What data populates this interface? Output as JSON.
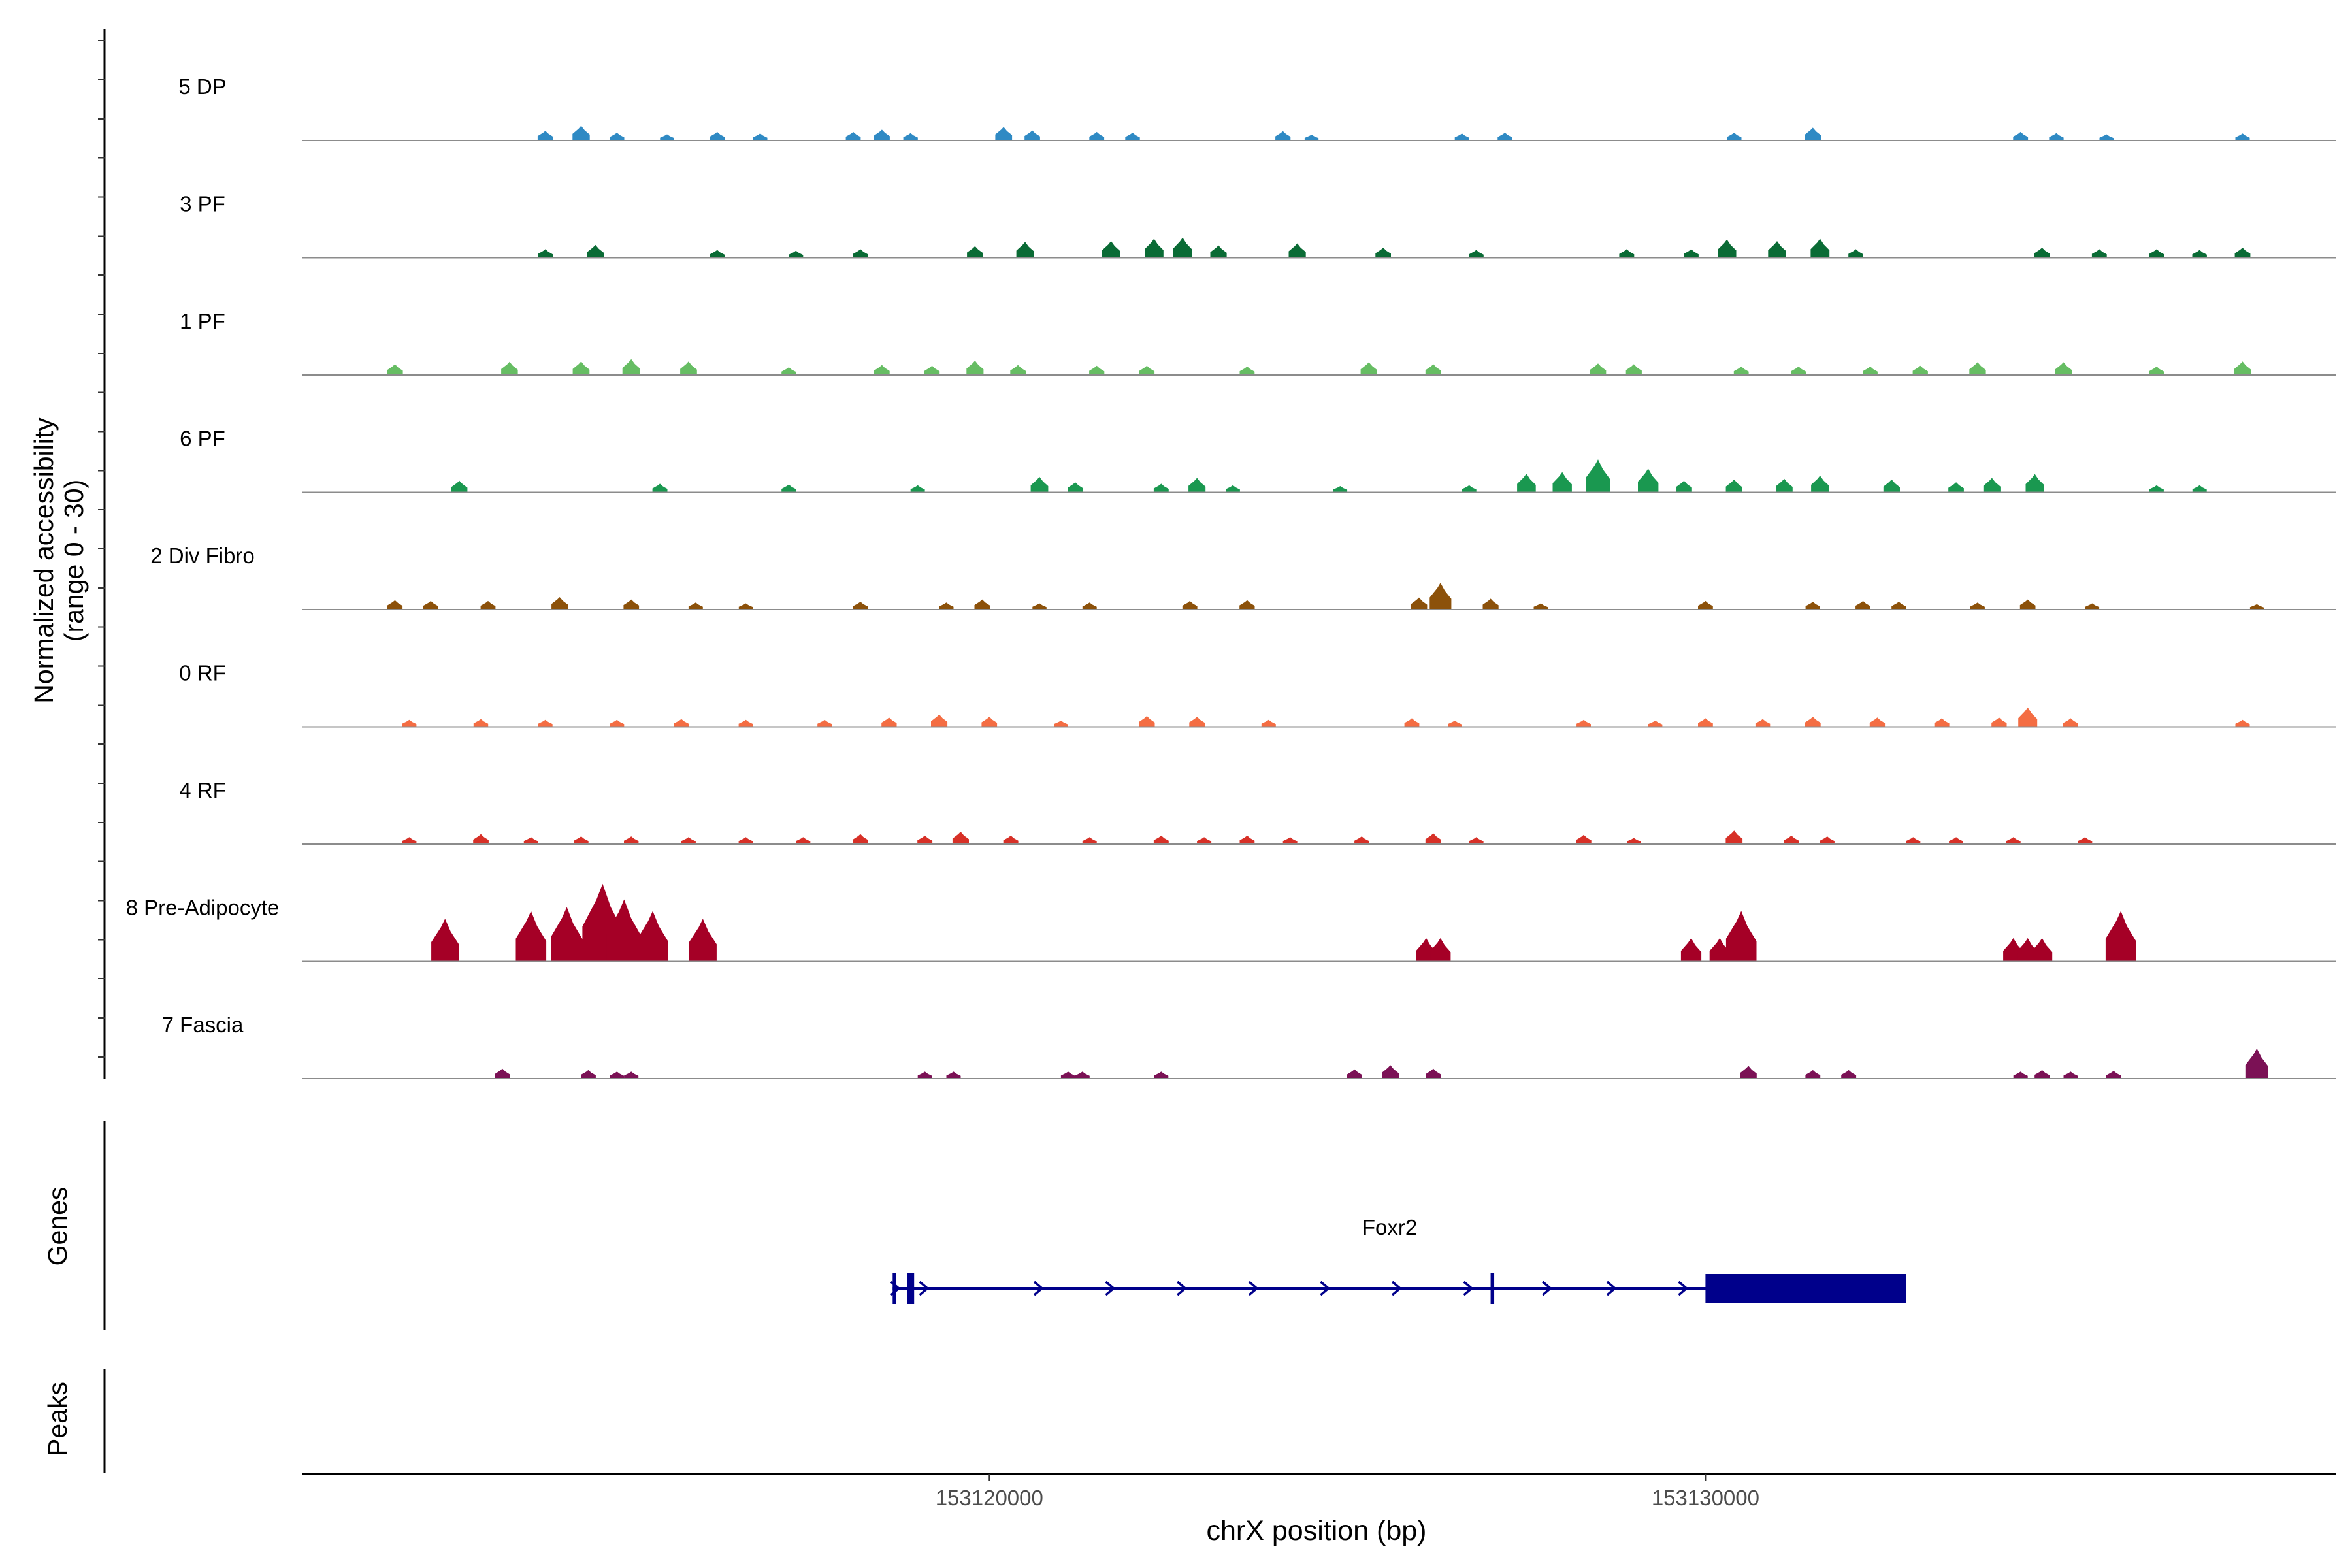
{
  "chart_data": {
    "type": "coverage-track",
    "title": "",
    "region": {
      "chrom": "chrX",
      "start": 153110400,
      "end": 153138800
    },
    "xlabel": "chrX position (bp)",
    "x_ticks": [
      153120000,
      153130000
    ],
    "x_tick_labels": [
      "153120000",
      "153130000"
    ],
    "coverage_ylabel_line1": "Normalized accessibility",
    "coverage_ylabel_line2": "(range 0 - 30)",
    "ylim": [
      0,
      30
    ],
    "genes_label": "Genes",
    "peaks_label": "Peaks",
    "tracks": [
      {
        "name": "5 DP",
        "color": "#2f8ac4",
        "peaks": [
          [
            153113800,
            2.5
          ],
          [
            153114300,
            3.8
          ],
          [
            153114800,
            2.0
          ],
          [
            153115500,
            1.6
          ],
          [
            153116200,
            2.2
          ],
          [
            153116800,
            1.8
          ],
          [
            153118100,
            2.2
          ],
          [
            153118500,
            2.8
          ],
          [
            153118900,
            1.9
          ],
          [
            153120200,
            3.5
          ],
          [
            153120600,
            2.6
          ],
          [
            153121500,
            2.2
          ],
          [
            153122000,
            2.0
          ],
          [
            153124100,
            2.4
          ],
          [
            153124500,
            1.5
          ],
          [
            153126600,
            1.8
          ],
          [
            153127200,
            2.0
          ],
          [
            153130400,
            2.0
          ],
          [
            153131500,
            3.3
          ],
          [
            153134400,
            2.2
          ],
          [
            153134900,
            1.9
          ],
          [
            153135600,
            1.6
          ],
          [
            153137500,
            1.8
          ]
        ]
      },
      {
        "name": "3 PF",
        "color": "#0a6b35",
        "peaks": [
          [
            153113800,
            2.2
          ],
          [
            153114500,
            3.3
          ],
          [
            153116200,
            2.0
          ],
          [
            153117300,
            1.8
          ],
          [
            153118200,
            2.2
          ],
          [
            153119800,
            3.0
          ],
          [
            153120500,
            4.1
          ],
          [
            153121700,
            4.3
          ],
          [
            153122300,
            4.9
          ],
          [
            153122700,
            5.2
          ],
          [
            153123200,
            3.2
          ],
          [
            153124300,
            3.7
          ],
          [
            153125500,
            2.6
          ],
          [
            153126800,
            2.0
          ],
          [
            153128900,
            2.2
          ],
          [
            153129800,
            2.2
          ],
          [
            153130300,
            4.7
          ],
          [
            153131000,
            4.3
          ],
          [
            153131600,
            4.9
          ],
          [
            153132100,
            2.2
          ],
          [
            153134700,
            2.6
          ],
          [
            153135500,
            2.2
          ],
          [
            153136300,
            2.2
          ],
          [
            153136900,
            2.0
          ],
          [
            153137500,
            2.6
          ]
        ]
      },
      {
        "name": "1 PF",
        "color": "#66bd63",
        "peaks": [
          [
            153111700,
            2.8
          ],
          [
            153113300,
            3.4
          ],
          [
            153114300,
            3.5
          ],
          [
            153115000,
            4.1
          ],
          [
            153115800,
            3.5
          ],
          [
            153117200,
            2.0
          ],
          [
            153118500,
            2.6
          ],
          [
            153119200,
            2.4
          ],
          [
            153119800,
            3.7
          ],
          [
            153120400,
            2.6
          ],
          [
            153121500,
            2.4
          ],
          [
            153122200,
            2.4
          ],
          [
            153123600,
            2.2
          ],
          [
            153125300,
            3.3
          ],
          [
            153126200,
            2.8
          ],
          [
            153128500,
            3.0
          ],
          [
            153129000,
            2.8
          ],
          [
            153130500,
            2.2
          ],
          [
            153131300,
            2.2
          ],
          [
            153132300,
            2.2
          ],
          [
            153133000,
            2.4
          ],
          [
            153133800,
            3.3
          ],
          [
            153135000,
            3.3
          ],
          [
            153136300,
            2.2
          ],
          [
            153137500,
            3.5
          ]
        ]
      },
      {
        "name": "6 PF",
        "color": "#1a9850",
        "peaks": [
          [
            153112600,
            3.0
          ],
          [
            153115400,
            2.2
          ],
          [
            153117200,
            2.0
          ],
          [
            153119000,
            1.8
          ],
          [
            153120700,
            4.0
          ],
          [
            153121200,
            2.6
          ],
          [
            153122400,
            2.2
          ],
          [
            153122900,
            3.7
          ],
          [
            153123400,
            1.8
          ],
          [
            153124900,
            1.6
          ],
          [
            153126700,
            1.8
          ],
          [
            153127500,
            4.8
          ],
          [
            153128000,
            5.2
          ],
          [
            153128500,
            8.5
          ],
          [
            153129200,
            6.1
          ],
          [
            153129700,
            3.0
          ],
          [
            153130400,
            3.3
          ],
          [
            153131100,
            3.5
          ],
          [
            153131600,
            4.3
          ],
          [
            153132600,
            3.3
          ],
          [
            153133500,
            2.6
          ],
          [
            153134000,
            3.7
          ],
          [
            153134600,
            4.7
          ],
          [
            153136300,
            1.8
          ],
          [
            153136900,
            1.8
          ]
        ]
      },
      {
        "name": "2 Div Fibro",
        "color": "#8c510a",
        "peaks": [
          [
            153111700,
            2.4
          ],
          [
            153112200,
            2.2
          ],
          [
            153113000,
            2.2
          ],
          [
            153114000,
            3.2
          ],
          [
            153115000,
            2.6
          ],
          [
            153115900,
            1.8
          ],
          [
            153116600,
            1.6
          ],
          [
            153118200,
            2.0
          ],
          [
            153119400,
            1.8
          ],
          [
            153119900,
            2.6
          ],
          [
            153120700,
            1.6
          ],
          [
            153121400,
            1.8
          ],
          [
            153122800,
            2.2
          ],
          [
            153123600,
            2.4
          ],
          [
            153126000,
            3.1
          ],
          [
            153126300,
            6.9
          ],
          [
            153127000,
            2.8
          ],
          [
            153127700,
            1.6
          ],
          [
            153130000,
            2.2
          ],
          [
            153131500,
            2.0
          ],
          [
            153132200,
            2.2
          ],
          [
            153132700,
            2.0
          ],
          [
            153133800,
            1.8
          ],
          [
            153134500,
            2.6
          ],
          [
            153135400,
            1.6
          ],
          [
            153137700,
            1.4
          ]
        ]
      },
      {
        "name": "0 RF",
        "color": "#f46d43",
        "peaks": [
          [
            153111900,
            1.8
          ],
          [
            153112900,
            2.0
          ],
          [
            153113800,
            1.8
          ],
          [
            153114800,
            1.8
          ],
          [
            153115700,
            2.0
          ],
          [
            153116600,
            1.8
          ],
          [
            153117700,
            1.8
          ],
          [
            153118600,
            2.4
          ],
          [
            153119300,
            3.2
          ],
          [
            153120000,
            2.6
          ],
          [
            153121000,
            1.6
          ],
          [
            153122200,
            2.8
          ],
          [
            153122900,
            2.6
          ],
          [
            153123900,
            1.8
          ],
          [
            153125900,
            2.2
          ],
          [
            153126500,
            1.6
          ],
          [
            153128300,
            1.8
          ],
          [
            153129300,
            1.6
          ],
          [
            153130000,
            2.2
          ],
          [
            153130800,
            2.0
          ],
          [
            153131500,
            2.6
          ],
          [
            153132400,
            2.4
          ],
          [
            153133300,
            2.2
          ],
          [
            153134100,
            2.4
          ],
          [
            153134500,
            5.0
          ],
          [
            153135100,
            2.2
          ],
          [
            153137500,
            1.8
          ]
        ]
      },
      {
        "name": "4 RF",
        "color": "#d73027",
        "peaks": [
          [
            153111900,
            1.8
          ],
          [
            153112900,
            2.6
          ],
          [
            153113600,
            1.8
          ],
          [
            153114300,
            2.0
          ],
          [
            153115000,
            2.0
          ],
          [
            153115800,
            1.8
          ],
          [
            153116600,
            1.8
          ],
          [
            153117400,
            1.8
          ],
          [
            153118200,
            2.6
          ],
          [
            153119100,
            2.2
          ],
          [
            153119600,
            3.2
          ],
          [
            153120300,
            2.2
          ],
          [
            153121400,
            1.8
          ],
          [
            153122400,
            2.2
          ],
          [
            153123000,
            1.8
          ],
          [
            153123600,
            2.2
          ],
          [
            153124200,
            1.8
          ],
          [
            153125200,
            2.0
          ],
          [
            153126200,
            2.8
          ],
          [
            153126800,
            1.8
          ],
          [
            153128300,
            2.4
          ],
          [
            153129000,
            1.6
          ],
          [
            153130400,
            3.5
          ],
          [
            153131200,
            2.2
          ],
          [
            153131700,
            2.0
          ],
          [
            153132900,
            1.8
          ],
          [
            153133500,
            1.8
          ],
          [
            153134300,
            1.8
          ],
          [
            153135300,
            1.8
          ]
        ]
      },
      {
        "name": "8 Pre-Adipocyte",
        "color": "#a50026",
        "peaks": [
          [
            153112400,
            11.0
          ],
          [
            153113600,
            13.0
          ],
          [
            153114100,
            14.0
          ],
          [
            153114600,
            20.0
          ],
          [
            153114900,
            16.0
          ],
          [
            153115300,
            13.0
          ],
          [
            153116000,
            11.0
          ],
          [
            153126100,
            6.0
          ],
          [
            153126300,
            6.0
          ],
          [
            153129800,
            6.0
          ],
          [
            153130200,
            6.0
          ],
          [
            153130500,
            13.0
          ],
          [
            153134300,
            6.0
          ],
          [
            153134500,
            6.0
          ],
          [
            153134700,
            6.0
          ],
          [
            153135800,
            13.0
          ]
        ]
      },
      {
        "name": "7 Fascia",
        "color": "#7b1155",
        "peaks": [
          [
            153113200,
            2.6
          ],
          [
            153114400,
            2.2
          ],
          [
            153114800,
            1.8
          ],
          [
            153115000,
            1.8
          ],
          [
            153119100,
            1.8
          ],
          [
            153119500,
            1.8
          ],
          [
            153121100,
            1.8
          ],
          [
            153121300,
            1.8
          ],
          [
            153122400,
            1.8
          ],
          [
            153125100,
            2.4
          ],
          [
            153125600,
            3.5
          ],
          [
            153126200,
            2.6
          ],
          [
            153130600,
            3.3
          ],
          [
            153131500,
            2.2
          ],
          [
            153132000,
            2.2
          ],
          [
            153134400,
            1.8
          ],
          [
            153134700,
            2.2
          ],
          [
            153135100,
            1.8
          ],
          [
            153135700,
            2.0
          ],
          [
            153137700,
            7.8
          ]
        ]
      }
    ],
    "gene": {
      "name": "Foxr2",
      "color": "#00008b",
      "start": 153118650,
      "end": 153132800,
      "strand": "+",
      "exons": [
        [
          153118650,
          153118700
        ],
        [
          153118850,
          153118950
        ],
        [
          153127000,
          153127050
        ],
        [
          153130000,
          153132800
        ]
      ],
      "arrows": [
        153118700,
        153119100,
        153120700,
        153121700,
        153122700,
        153123700,
        153124700,
        153125700,
        153126700,
        153127800,
        153128700,
        153129700
      ]
    }
  }
}
